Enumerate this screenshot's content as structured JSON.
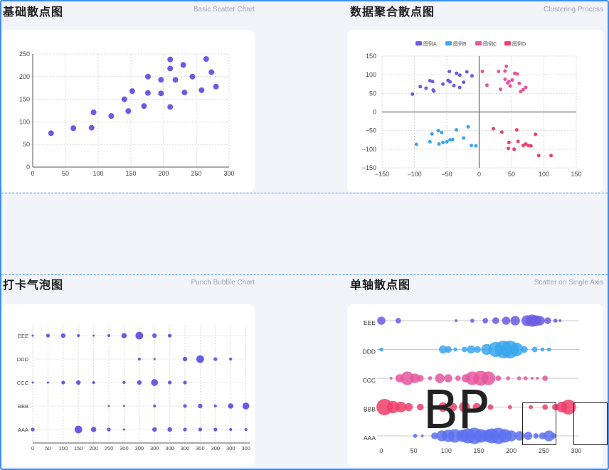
{
  "panels": [
    {
      "title": "基础散点图",
      "subtitle": "Basic Scatter Chart"
    },
    {
      "title": "数据聚合散点图",
      "subtitle": "Clustering Process"
    },
    {
      "title": "打卡气泡图",
      "subtitle": "Punch Bubble Chart"
    },
    {
      "title": "单轴散点图",
      "subtitle": "Scatter on Single Axis"
    }
  ],
  "overlay": {
    "text": "BP"
  },
  "chart_data": [
    {
      "type": "scatter",
      "title": "基础散点图",
      "xlim": [
        0,
        300
      ],
      "ylim": [
        0,
        250
      ],
      "xticks": [
        0,
        50,
        100,
        150,
        200,
        250,
        300
      ],
      "yticks": [
        0,
        50,
        100,
        150,
        200,
        250
      ],
      "color": "#6b5be2",
      "points": [
        [
          28,
          75
        ],
        [
          62,
          86
        ],
        [
          90,
          87
        ],
        [
          93,
          121
        ],
        [
          120,
          113
        ],
        [
          140,
          150
        ],
        [
          146,
          124
        ],
        [
          152,
          168
        ],
        [
          170,
          135
        ],
        [
          176,
          200
        ],
        [
          176,
          164
        ],
        [
          196,
          163
        ],
        [
          196,
          193
        ],
        [
          210,
          133
        ],
        [
          210,
          218
        ],
        [
          210,
          238
        ],
        [
          218,
          193
        ],
        [
          230,
          226
        ],
        [
          232,
          165
        ],
        [
          244,
          200
        ],
        [
          258,
          170
        ],
        [
          265,
          239
        ],
        [
          273,
          210
        ],
        [
          280,
          178
        ]
      ]
    },
    {
      "type": "scatter",
      "title": "数据聚合散点图",
      "xlim": [
        -150,
        150
      ],
      "ylim": [
        -150,
        150
      ],
      "xticks": [
        -150,
        -100,
        -50,
        0,
        50,
        100,
        150
      ],
      "yticks": [
        -150,
        -100,
        -50,
        0,
        50,
        100,
        150
      ],
      "legend_position": "top",
      "series": [
        {
          "name": "图例A",
          "color": "#6b5be2",
          "points": [
            [
              -103,
              48
            ],
            [
              -91,
              68
            ],
            [
              -82,
              64
            ],
            [
              -76,
              84
            ],
            [
              -72,
              82
            ],
            [
              -71,
              59
            ],
            [
              -70,
              56
            ],
            [
              -56,
              75
            ],
            [
              -48,
              85
            ],
            [
              -46,
              109
            ],
            [
              -45,
              81
            ],
            [
              -39,
              71
            ],
            [
              -35,
              104
            ],
            [
              -30,
              66
            ],
            [
              -30,
              99
            ],
            [
              -24,
              80
            ],
            [
              -19,
              108
            ],
            [
              -11,
              97
            ]
          ]
        },
        {
          "name": "图例B",
          "color": "#3aa6ef",
          "points": [
            [
              -97,
              -87
            ],
            [
              -76,
              -80
            ],
            [
              -73,
              -59
            ],
            [
              -63,
              -50
            ],
            [
              -62,
              -86
            ],
            [
              -58,
              -55
            ],
            [
              -56,
              -82
            ],
            [
              -50,
              -80
            ],
            [
              -45,
              -75
            ],
            [
              -41,
              -74
            ],
            [
              -35,
              -48
            ],
            [
              -24,
              -70
            ],
            [
              -17,
              -40
            ],
            [
              -12,
              -90
            ],
            [
              -5,
              -91
            ]
          ]
        },
        {
          "name": "图例C",
          "color": "#e5569f",
          "points": [
            [
              5,
              109
            ],
            [
              12,
              72
            ],
            [
              30,
              109
            ],
            [
              33,
              61
            ],
            [
              40,
              110
            ],
            [
              40,
              88
            ],
            [
              42,
              123
            ],
            [
              44,
              78
            ],
            [
              46,
              82
            ],
            [
              48,
              70
            ],
            [
              51,
              86
            ],
            [
              55,
              104
            ],
            [
              59,
              102
            ],
            [
              62,
              77
            ],
            [
              64,
              55
            ],
            [
              68,
              60
            ],
            [
              72,
              66
            ]
          ]
        },
        {
          "name": "图例D",
          "color": "#ef3e68",
          "points": [
            [
              22,
              -45
            ],
            [
              35,
              -54
            ],
            [
              45,
              -98
            ],
            [
              46,
              -82
            ],
            [
              54,
              -100
            ],
            [
              58,
              -48
            ],
            [
              60,
              -79
            ],
            [
              68,
              -90
            ],
            [
              72,
              -86
            ],
            [
              76,
              -90
            ],
            [
              80,
              -91
            ],
            [
              87,
              -60
            ],
            [
              92,
              -117
            ],
            [
              111,
              -117
            ]
          ]
        }
      ]
    },
    {
      "type": "scatter",
      "title": "打卡气泡图",
      "categories": [
        "AAA",
        "BBB",
        "CCC",
        "DDD",
        "EEE"
      ],
      "xticks": [
        "0",
        "50",
        "100",
        "150",
        "200",
        "250",
        "300",
        "300",
        "300",
        "300",
        "300",
        "300",
        "300",
        "300",
        "300"
      ],
      "color": "#6b5be2",
      "points": [
        [
          0,
          0,
          3
        ],
        [
          3,
          0,
          8
        ],
        [
          4,
          0,
          5
        ],
        [
          5,
          0,
          3
        ],
        [
          6,
          0,
          1
        ],
        [
          8,
          0,
          4
        ],
        [
          9,
          0,
          4
        ],
        [
          10,
          0,
          3
        ],
        [
          11,
          0,
          3
        ],
        [
          12,
          0,
          3
        ],
        [
          13,
          0,
          2
        ],
        [
          14,
          0,
          2
        ],
        [
          5,
          1,
          1
        ],
        [
          6,
          1,
          1
        ],
        [
          8,
          1,
          2
        ],
        [
          10,
          1,
          3
        ],
        [
          11,
          1,
          4
        ],
        [
          12,
          1,
          2
        ],
        [
          13,
          1,
          5
        ],
        [
          14,
          1,
          7
        ],
        [
          0,
          2,
          1
        ],
        [
          1,
          2,
          1
        ],
        [
          2,
          2,
          3
        ],
        [
          3,
          2,
          4
        ],
        [
          4,
          2,
          2
        ],
        [
          6,
          2,
          2
        ],
        [
          7,
          2,
          4
        ],
        [
          8,
          2,
          7
        ],
        [
          9,
          2,
          3
        ],
        [
          10,
          2,
          3
        ],
        [
          7,
          3,
          2
        ],
        [
          8,
          3,
          1
        ],
        [
          10,
          3,
          4
        ],
        [
          11,
          3,
          8
        ],
        [
          12,
          3,
          3
        ],
        [
          13,
          3,
          2
        ],
        [
          0,
          4,
          1
        ],
        [
          1,
          4,
          3
        ],
        [
          2,
          4,
          4
        ],
        [
          3,
          4,
          2
        ],
        [
          4,
          4,
          1
        ],
        [
          5,
          4,
          2
        ],
        [
          6,
          4,
          5
        ],
        [
          7,
          4,
          8
        ],
        [
          8,
          4,
          4
        ],
        [
          9,
          4,
          3
        ]
      ]
    },
    {
      "type": "scatter",
      "title": "单轴散点图",
      "categories": [
        "AAA",
        "BBB",
        "CCC",
        "DDD",
        "EEE"
      ],
      "xlim": [
        0,
        300
      ],
      "xticks": [
        0,
        50,
        100,
        150,
        200,
        250,
        300
      ],
      "series": [
        {
          "name": "AAA",
          "color": "#5b70ee",
          "points": [
            [
              52,
              2
            ],
            [
              63,
              1
            ],
            [
              82,
              4
            ],
            [
              93,
              7
            ],
            [
              103,
              8
            ],
            [
              113,
              9
            ],
            [
              125,
              8
            ],
            [
              133,
              10
            ],
            [
              143,
              11
            ],
            [
              153,
              9
            ],
            [
              163,
              8
            ],
            [
              170,
              10
            ],
            [
              180,
              11
            ],
            [
              190,
              9
            ],
            [
              200,
              7
            ],
            [
              213,
              6
            ],
            [
              226,
              5
            ],
            [
              238,
              3
            ],
            [
              248,
              4
            ],
            [
              258,
              7
            ],
            [
              265,
              3
            ]
          ]
        },
        {
          "name": "BBB",
          "color": "#ef3e68",
          "points": [
            [
              5,
              11
            ],
            [
              18,
              8
            ],
            [
              30,
              7
            ],
            [
              42,
              5
            ],
            [
              60,
              4
            ],
            [
              95,
              6
            ],
            [
              110,
              5
            ],
            [
              128,
              7
            ],
            [
              147,
              5
            ],
            [
              168,
              3
            ],
            [
              198,
              2
            ],
            [
              230,
              2
            ],
            [
              252,
              3
            ],
            [
              268,
              4
            ],
            [
              278,
              7
            ],
            [
              288,
              10
            ]
          ]
        },
        {
          "name": "CCC",
          "color": "#e5569f",
          "points": [
            [
              15,
              1
            ],
            [
              28,
              5
            ],
            [
              40,
              9
            ],
            [
              52,
              6
            ],
            [
              60,
              4
            ],
            [
              75,
              2
            ],
            [
              90,
              6
            ],
            [
              103,
              5
            ],
            [
              118,
              3
            ],
            [
              130,
              5
            ],
            [
              140,
              9
            ],
            [
              153,
              10
            ],
            [
              165,
              9
            ],
            [
              180,
              3
            ],
            [
              195,
              2
            ],
            [
              212,
              2
            ],
            [
              222,
              2
            ],
            [
              232,
              1
            ],
            [
              240,
              1
            ],
            [
              252,
              3
            ]
          ]
        },
        {
          "name": "DDD",
          "color": "#3aa6ef",
          "points": [
            [
              0,
              2
            ],
            [
              95,
              5
            ],
            [
              103,
              4
            ],
            [
              114,
              2
            ],
            [
              128,
              3
            ],
            [
              138,
              5
            ],
            [
              148,
              4
            ],
            [
              162,
              7
            ],
            [
              176,
              10
            ],
            [
              188,
              12
            ],
            [
              198,
              12
            ],
            [
              208,
              9
            ],
            [
              220,
              4
            ],
            [
              236,
              3
            ],
            [
              248,
              2
            ],
            [
              258,
              2
            ]
          ]
        },
        {
          "name": "EEE",
          "color": "#6b5be2",
          "points": [
            [
              0,
              5
            ],
            [
              26,
              3
            ],
            [
              115,
              1
            ],
            [
              140,
              2
            ],
            [
              160,
              3
            ],
            [
              176,
              4
            ],
            [
              192,
              5
            ],
            [
              206,
              6
            ],
            [
              224,
              7
            ],
            [
              232,
              8
            ],
            [
              238,
              7
            ],
            [
              244,
              6
            ],
            [
              256,
              4
            ],
            [
              268,
              2
            ],
            [
              275,
              1
            ]
          ]
        }
      ]
    }
  ]
}
